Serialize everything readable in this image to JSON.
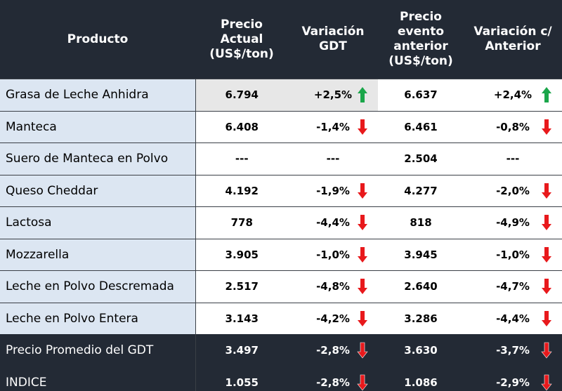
{
  "table": {
    "columns": [
      "Producto",
      "Precio\nActual\n(US$/ton)",
      "Variación\nGDT",
      "Precio\nevento\nanterior\n(US$/ton)",
      "Variación c/\nAnterior"
    ],
    "rows": [
      [
        "Grasa de Leche Anhidra",
        "6.794",
        "+2,5%",
        "6.637",
        "+2,4%"
      ],
      [
        "Manteca",
        "6.408",
        "-1,4%",
        "6.461",
        "-0,8%"
      ],
      [
        "Suero de Manteca en Polvo",
        "---",
        "---",
        "2.504",
        "---"
      ],
      [
        "Queso Cheddar",
        "4.192",
        "-1,9%",
        "4.277",
        "-2,0%"
      ],
      [
        "Lactosa",
        "778",
        "-4,4%",
        "818",
        "-4,9%"
      ],
      [
        "Mozzarella",
        "3.905",
        "-1,0%",
        "3.945",
        "-1,0%"
      ],
      [
        "Leche en Polvo Descremada",
        "2.517",
        "-4,8%",
        "2.640",
        "-4,7%"
      ],
      [
        "Leche en Polvo Entera",
        "3.143",
        "-4,2%",
        "3.286",
        "-4,4%"
      ],
      [
        "Precio Promedio del GDT",
        "3.497",
        "-2,8%",
        "3.630",
        "-3,7%"
      ],
      [
        "INDICE",
        "1.055",
        "-2,8%",
        "1.086",
        "-2,9%"
      ]
    ],
    "arrows": [
      [
        "up",
        "up"
      ],
      [
        "down",
        "down"
      ],
      [
        null,
        null
      ],
      [
        "down",
        "down"
      ],
      [
        "down",
        "down"
      ],
      [
        "down",
        "down"
      ],
      [
        "down",
        "down"
      ],
      [
        "down",
        "down"
      ],
      [
        "down",
        "down"
      ],
      [
        "down",
        "down"
      ]
    ],
    "summary_rows": 2
  }
}
